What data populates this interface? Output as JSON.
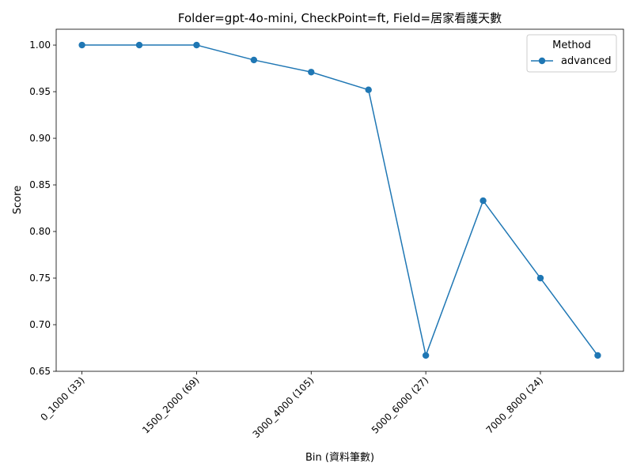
{
  "chart_data": {
    "type": "line",
    "title": "Folder=gpt-4o-mini, CheckPoint=ft, Field=居家看護天數",
    "xlabel": "Bin (資料筆數)",
    "ylabel": "Score",
    "x_tick_labels": [
      "0_1000 (33)",
      "1500_2000 (69)",
      "3000_4000 (105)",
      "5000_6000 (27)",
      "7000_8000 (24)"
    ],
    "x_tick_positions": [
      0,
      2,
      4,
      6,
      8
    ],
    "xlim": [
      -0.45,
      9.45
    ],
    "y_ticks": [
      0.65,
      0.7,
      0.75,
      0.8,
      0.85,
      0.9,
      0.95,
      1.0
    ],
    "ylim": [
      0.65,
      1.017
    ],
    "grid": false,
    "legend": {
      "title": "Method",
      "placement": "upper-right"
    },
    "series": [
      {
        "name": "advanced",
        "color": "#1f77b4",
        "marker": "circle",
        "x": [
          0,
          1,
          2,
          3,
          4,
          5,
          6,
          7,
          8,
          9
        ],
        "values": [
          1.0,
          1.0,
          1.0,
          0.984,
          0.971,
          0.952,
          0.667,
          0.833,
          0.75,
          0.667
        ]
      }
    ]
  }
}
